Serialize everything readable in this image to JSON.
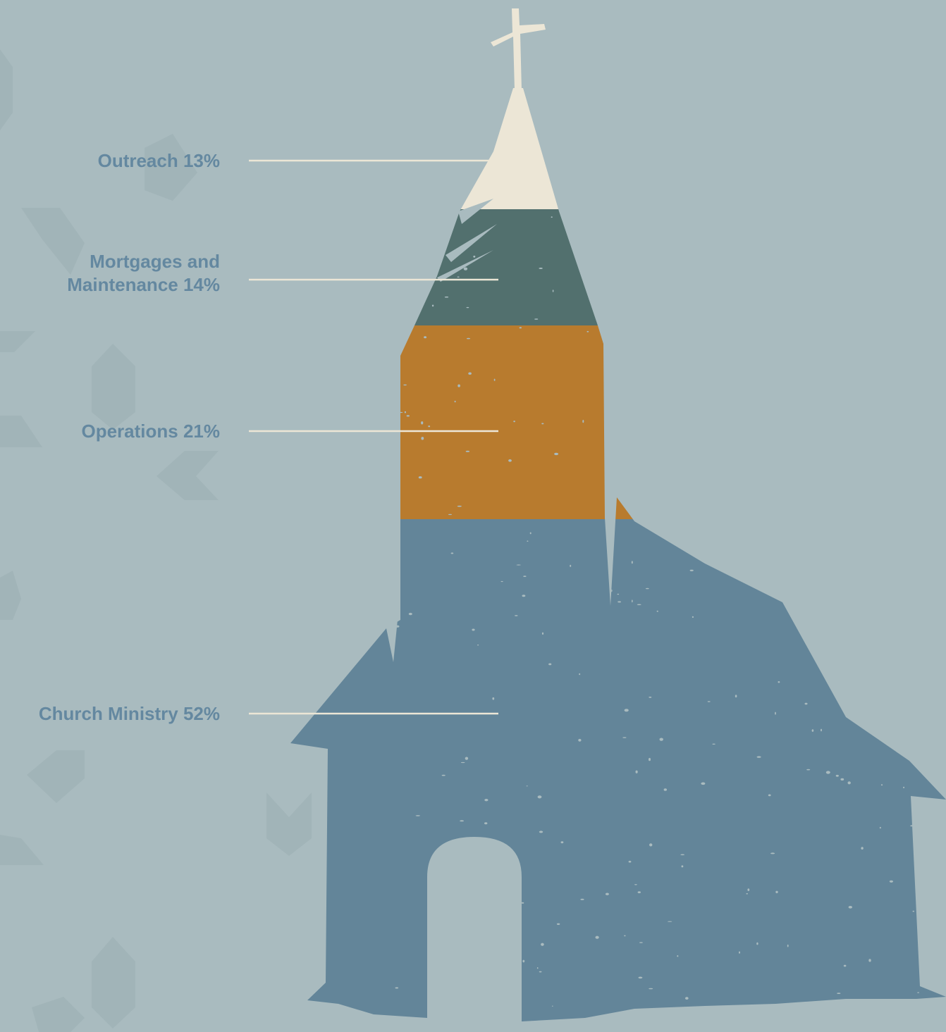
{
  "chart_data": {
    "type": "bar",
    "series": [
      {
        "name": "Outreach",
        "value": 13,
        "label_lines": [
          "Outreach 13%"
        ],
        "color": "#ece6d6"
      },
      {
        "name": "Mortgages and Maintenance",
        "value": 14,
        "label_lines": [
          "Mortgages and",
          "Maintenance 14%"
        ],
        "color": "#52706e"
      },
      {
        "name": "Operations",
        "value": 21,
        "label_lines": [
          "Operations 21%"
        ],
        "color": "#b87b2e"
      },
      {
        "name": "Church Ministry",
        "value": 52,
        "label_lines": [
          "Church Ministry 52%"
        ],
        "color": "#638599"
      }
    ],
    "unit": "%"
  },
  "colors": {
    "background": "#a9bbbf",
    "label": "#6488a0",
    "leader": "#ece6d6"
  }
}
